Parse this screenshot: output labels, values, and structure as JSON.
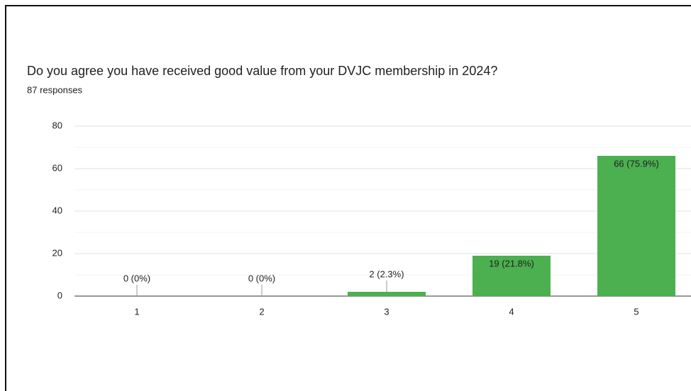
{
  "chart_data": {
    "type": "bar",
    "title": "Do you agree you have received good value from your DVJC membership in 2024?",
    "subtitle": "87 responses",
    "categories": [
      "1",
      "2",
      "3",
      "4",
      "5"
    ],
    "values": [
      0,
      0,
      2,
      19,
      66
    ],
    "value_labels": [
      "0 (0%)",
      "0 (0%)",
      "2 (2.3%)",
      "19 (21.8%)",
      "66 (75.9%)"
    ],
    "color": "#4caf50",
    "ylim": [
      0,
      80
    ],
    "yticks": [
      0,
      20,
      40,
      60,
      80
    ],
    "minor_yticks": [
      10,
      30,
      50,
      70
    ],
    "grid": true
  }
}
